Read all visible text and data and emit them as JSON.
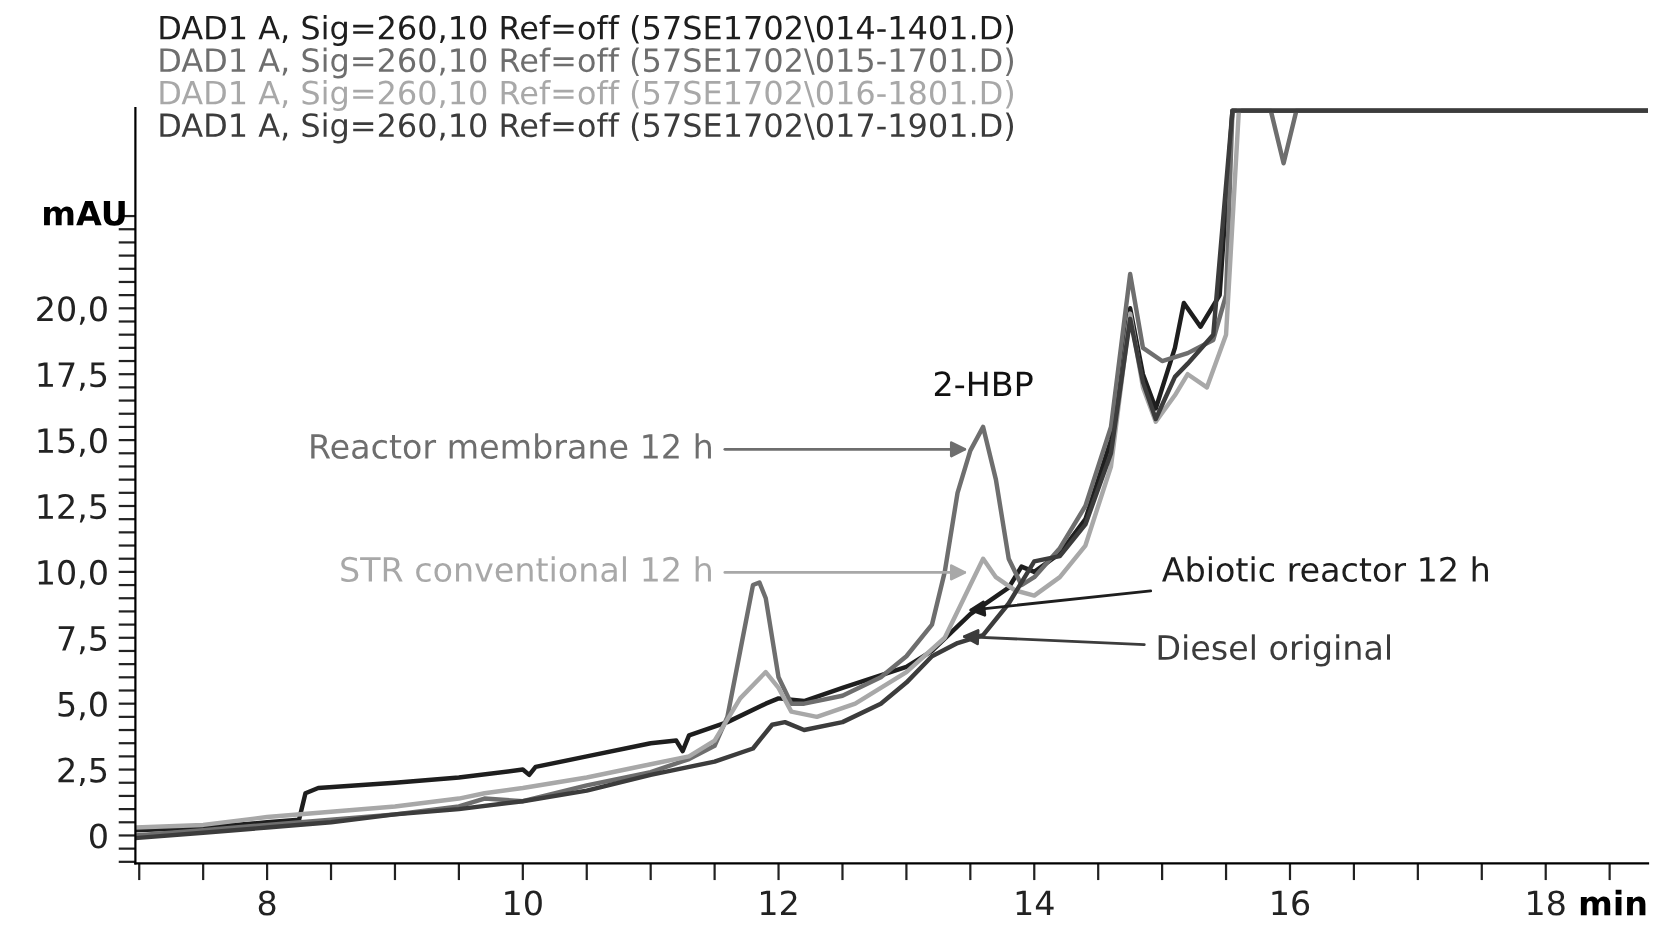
{
  "chart_data": {
    "type": "line",
    "xlabel": "min",
    "ylabel": "mAU",
    "legend": "top left",
    "grid": false,
    "marker": "none",
    "line_style": "solid",
    "xlim": [
      6.97,
      18.8
    ],
    "ylim": [
      -1.06,
      27.6
    ],
    "xticks": [
      {
        "value": 7.0,
        "label": null
      },
      {
        "value": 7.5,
        "label": null
      },
      8,
      {
        "value": 8.5,
        "label": null
      },
      {
        "value": 9.0,
        "label": null
      },
      {
        "value": 9.5,
        "label": null
      },
      10,
      {
        "value": 10.5,
        "label": null
      },
      {
        "value": 11.0,
        "label": null
      },
      {
        "value": 11.5,
        "label": null
      },
      12,
      {
        "value": 12.5,
        "label": null
      },
      {
        "value": 13.0,
        "label": null
      },
      {
        "value": 13.5,
        "label": null
      },
      14,
      {
        "value": 14.5,
        "label": null
      },
      {
        "value": 15.0,
        "label": null
      },
      {
        "value": 15.5,
        "label": null
      },
      16,
      {
        "value": 16.5,
        "label": null
      },
      {
        "value": 17.0,
        "label": null
      },
      {
        "value": 17.5,
        "label": null
      },
      18,
      {
        "value": 18.5,
        "label": null
      }
    ],
    "yticks": [
      {
        "value": -1.0,
        "label": null
      },
      {
        "value": -0.5,
        "label": null
      },
      0,
      {
        "value": 0.5,
        "label": null
      },
      {
        "value": 1.0,
        "label": null
      },
      {
        "value": 1.5,
        "label": null
      },
      {
        "value": 2.0,
        "label": null
      },
      {
        "value": 2.5,
        "label": "2,5"
      },
      {
        "value": 3.0,
        "label": null
      },
      {
        "value": 3.5,
        "label": null
      },
      {
        "value": 4.0,
        "label": null
      },
      {
        "value": 4.5,
        "label": null
      },
      {
        "value": 5.0,
        "label": "5,0"
      },
      {
        "value": 5.5,
        "label": null
      },
      {
        "value": 6.0,
        "label": null
      },
      {
        "value": 6.5,
        "label": null
      },
      {
        "value": 7.0,
        "label": null
      },
      {
        "value": 7.5,
        "label": "7,5"
      },
      {
        "value": 8.0,
        "label": null
      },
      {
        "value": 8.5,
        "label": null
      },
      {
        "value": 9.0,
        "label": null
      },
      {
        "value": 9.5,
        "label": null
      },
      {
        "value": 10.0,
        "label": "10,0"
      },
      {
        "value": 10.5,
        "label": null
      },
      {
        "value": 11.0,
        "label": null
      },
      {
        "value": 11.5,
        "label": null
      },
      {
        "value": 12.0,
        "label": null
      },
      {
        "value": 12.5,
        "label": "12,5"
      },
      {
        "value": 13.0,
        "label": null
      },
      {
        "value": 13.5,
        "label": null
      },
      {
        "value": 14.0,
        "label": null
      },
      {
        "value": 14.5,
        "label": null
      },
      {
        "value": 15.0,
        "label": "15,0"
      },
      {
        "value": 15.5,
        "label": null
      },
      {
        "value": 16.0,
        "label": null
      },
      {
        "value": 16.5,
        "label": null
      },
      {
        "value": 17.0,
        "label": null
      },
      {
        "value": 17.5,
        "label": "17,5"
      },
      {
        "value": 18.0,
        "label": null
      },
      {
        "value": 18.5,
        "label": null
      },
      {
        "value": 19.0,
        "label": null
      },
      {
        "value": 19.5,
        "label": null
      },
      {
        "value": 20.0,
        "label": "20,0"
      },
      {
        "value": 20.5,
        "label": null
      },
      {
        "value": 21.0,
        "label": null
      },
      {
        "value": 21.5,
        "label": null
      },
      {
        "value": 22.0,
        "label": null
      },
      {
        "value": 22.5,
        "label": null
      },
      {
        "value": 23.0,
        "label": null
      },
      {
        "value": 23.5,
        "label": null
      }
    ],
    "series": [
      {
        "name": "DAD1 A, Sig=260,10 Ref=off (57SE1702\\014-1401.D)",
        "color": "#1e1e1e",
        "x": [
          6.97,
          7.5,
          8,
          8.25,
          8.3,
          8.4,
          9,
          9.5,
          10,
          10.05,
          10.1,
          10.5,
          11,
          11.2,
          11.25,
          11.3,
          11.6,
          11.9,
          12.0,
          12.2,
          12.5,
          13.0,
          13.2,
          13.5,
          13.8,
          13.9,
          14.0,
          14.2,
          14.4,
          14.6,
          14.75,
          14.85,
          14.95,
          15.1,
          15.17,
          15.3,
          15.45,
          15.55,
          18.8
        ],
        "values": [
          0.2,
          0.3,
          0.5,
          0.6,
          1.6,
          1.8,
          2.0,
          2.2,
          2.5,
          2.3,
          2.6,
          3.0,
          3.5,
          3.6,
          3.2,
          3.8,
          4.3,
          5.0,
          5.2,
          5.1,
          5.6,
          6.4,
          7.0,
          8.4,
          9.4,
          10.2,
          10.0,
          10.7,
          12.0,
          15.0,
          20.0,
          17.5,
          16.2,
          18.5,
          20.2,
          19.3,
          20.5,
          27.5,
          27.5
        ]
      },
      {
        "name": "DAD1 A, Sig=260,10 Ref=off (57SE1702\\015-1701.D)",
        "color": "#6e6e6e",
        "x": [
          6.97,
          7.5,
          8,
          8.5,
          9,
          9.5,
          9.7,
          10,
          10.5,
          11,
          11.3,
          11.5,
          11.6,
          11.7,
          11.8,
          11.85,
          11.9,
          12.0,
          12.1,
          12.2,
          12.5,
          12.8,
          13.0,
          13.2,
          13.3,
          13.4,
          13.5,
          13.6,
          13.7,
          13.8,
          13.9,
          14.0,
          14.2,
          14.4,
          14.6,
          14.75,
          14.85,
          15.0,
          15.2,
          15.4,
          15.5,
          15.55,
          15.85,
          15.95,
          16.05,
          18.8
        ],
        "values": [
          0.0,
          0.2,
          0.4,
          0.6,
          0.8,
          1.1,
          1.4,
          1.3,
          1.9,
          2.4,
          2.9,
          3.4,
          4.5,
          7.0,
          9.5,
          9.6,
          9.0,
          6.0,
          5.0,
          5.0,
          5.3,
          6.0,
          6.8,
          8.0,
          10.0,
          13.0,
          14.6,
          15.5,
          13.5,
          10.5,
          9.5,
          9.8,
          10.9,
          12.5,
          15.5,
          21.3,
          18.5,
          18.0,
          18.3,
          18.8,
          20.5,
          27.5,
          27.5,
          25.5,
          27.5,
          27.5
        ]
      },
      {
        "name": "DAD1 A, Sig=260,10 Ref=off (57SE1702\\016-1801.D)",
        "color": "#a8a8a8",
        "x": [
          6.97,
          7.5,
          8,
          8.5,
          9,
          9.5,
          9.7,
          10,
          10.5,
          11,
          11.3,
          11.5,
          11.7,
          11.9,
          12.0,
          12.1,
          12.3,
          12.6,
          13.0,
          13.3,
          13.5,
          13.6,
          13.7,
          13.85,
          14.0,
          14.2,
          14.4,
          14.6,
          14.75,
          14.85,
          14.95,
          15.1,
          15.2,
          15.35,
          15.5,
          15.6
        ],
        "values": [
          0.3,
          0.4,
          0.7,
          0.9,
          1.1,
          1.4,
          1.6,
          1.8,
          2.2,
          2.7,
          3.0,
          3.6,
          5.2,
          6.2,
          5.6,
          4.7,
          4.5,
          5.0,
          6.2,
          7.5,
          9.5,
          10.5,
          9.8,
          9.3,
          9.1,
          9.8,
          11.0,
          14.0,
          19.8,
          17.0,
          15.7,
          16.7,
          17.5,
          17.0,
          19.0,
          27.5
        ]
      },
      {
        "name": "DAD1 A, Sig=260,10 Ref=off (57SE1702\\017-1901.D)",
        "color": "#3c3c3c",
        "x": [
          6.97,
          7.5,
          8,
          8.5,
          9,
          9.5,
          10,
          10.5,
          11,
          11.5,
          11.8,
          11.95,
          12.05,
          12.2,
          12.5,
          12.8,
          13.0,
          13.2,
          13.4,
          13.6,
          13.8,
          14.0,
          14.2,
          14.4,
          14.6,
          14.75,
          14.85,
          14.95,
          15.1,
          15.2,
          15.4,
          15.55,
          18.8
        ],
        "values": [
          -0.1,
          0.1,
          0.3,
          0.5,
          0.8,
          1.0,
          1.3,
          1.7,
          2.3,
          2.8,
          3.3,
          4.2,
          4.3,
          4.0,
          4.3,
          5.0,
          5.8,
          6.8,
          7.3,
          7.6,
          8.8,
          10.4,
          10.6,
          11.8,
          14.5,
          19.6,
          17.2,
          15.8,
          17.4,
          17.9,
          19.0,
          27.5,
          27.5
        ]
      }
    ],
    "annotations": [
      {
        "text": "2-HBP",
        "x": 13.6,
        "y": 15.5
      },
      {
        "text": "Reactor membrane 12 h",
        "x": 13.48,
        "y": 14.65
      },
      {
        "text": "STR conventional 12 h",
        "x": 13.48,
        "y": 9.98
      },
      {
        "text": "Abiotic reactor 12 h",
        "x": 13.48,
        "y": 8.54
      },
      {
        "text": "Diesel original",
        "x": 13.43,
        "y": 7.55
      }
    ]
  }
}
